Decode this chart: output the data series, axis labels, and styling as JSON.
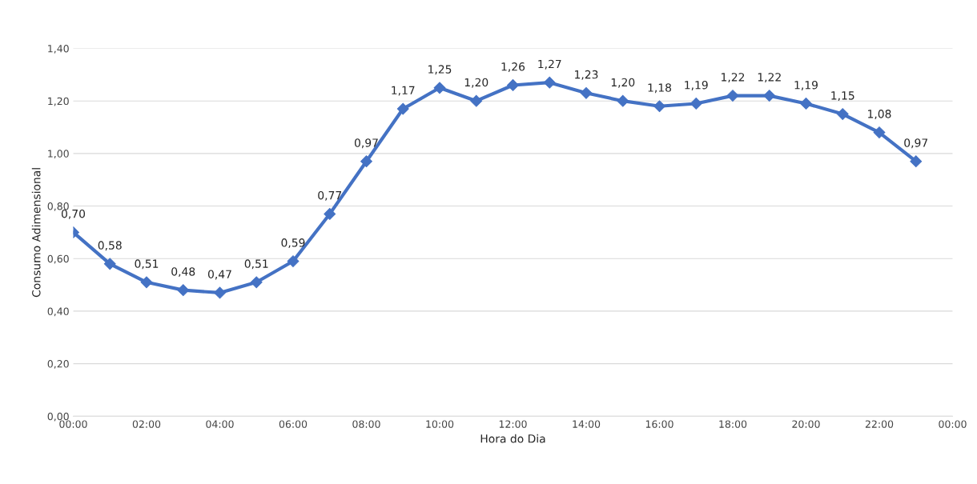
{
  "chart_data": {
    "type": "line",
    "xlabel": "Hora do Dia",
    "ylabel": "Consumo Adimensional",
    "x": [
      0,
      1,
      2,
      3,
      4,
      5,
      6,
      7,
      8,
      9,
      10,
      11,
      12,
      13,
      14,
      15,
      16,
      17,
      18,
      19,
      20,
      21,
      22,
      23
    ],
    "series": [
      {
        "color": "#4472c4",
        "values": [
          0.7,
          0.58,
          0.51,
          0.48,
          0.47,
          0.51,
          0.59,
          0.77,
          0.97,
          1.17,
          1.25,
          1.2,
          1.26,
          1.27,
          1.23,
          1.2,
          1.18,
          1.19,
          1.22,
          1.22,
          1.19,
          1.15,
          1.08,
          0.97
        ],
        "value_labels": [
          "0,70",
          "0,58",
          "0,51",
          "0,48",
          "0,47",
          "0,51",
          "0,59",
          "0,77",
          "0,97",
          "1,17",
          "1,25",
          "1,20",
          "1,26",
          "1,27",
          "1,23",
          "1,20",
          "1,18",
          "1,19",
          "1,22",
          "1,22",
          "1,19",
          "1,15",
          "1,08",
          "0,97"
        ]
      }
    ],
    "xlim": [
      0,
      24
    ],
    "xticks": [
      {
        "value": 0,
        "label": "00:00"
      },
      {
        "value": 2,
        "label": "02:00"
      },
      {
        "value": 4,
        "label": "04:00"
      },
      {
        "value": 6,
        "label": "06:00"
      },
      {
        "value": 8,
        "label": "08:00"
      },
      {
        "value": 10,
        "label": "10:00"
      },
      {
        "value": 12,
        "label": "12:00"
      },
      {
        "value": 14,
        "label": "14:00"
      },
      {
        "value": 16,
        "label": "16:00"
      },
      {
        "value": 18,
        "label": "18:00"
      },
      {
        "value": 20,
        "label": "20:00"
      },
      {
        "value": 22,
        "label": "22:00"
      },
      {
        "value": 24,
        "label": "00:00"
      }
    ],
    "ylim": [
      0,
      1.4
    ],
    "yticks": [
      {
        "value": 0,
        "label": "0,00"
      },
      {
        "value": 0.2,
        "label": "0,20"
      },
      {
        "value": 0.4,
        "label": "0,40"
      },
      {
        "value": 0.6,
        "label": "0,60"
      },
      {
        "value": 0.8,
        "label": "0,80"
      },
      {
        "value": 1.0,
        "label": "1,00"
      },
      {
        "value": 1.2,
        "label": "1,20"
      },
      {
        "value": 1.4,
        "label": "1,40"
      }
    ],
    "grid": "y",
    "marker": "diamond",
    "line_style": "solid"
  }
}
